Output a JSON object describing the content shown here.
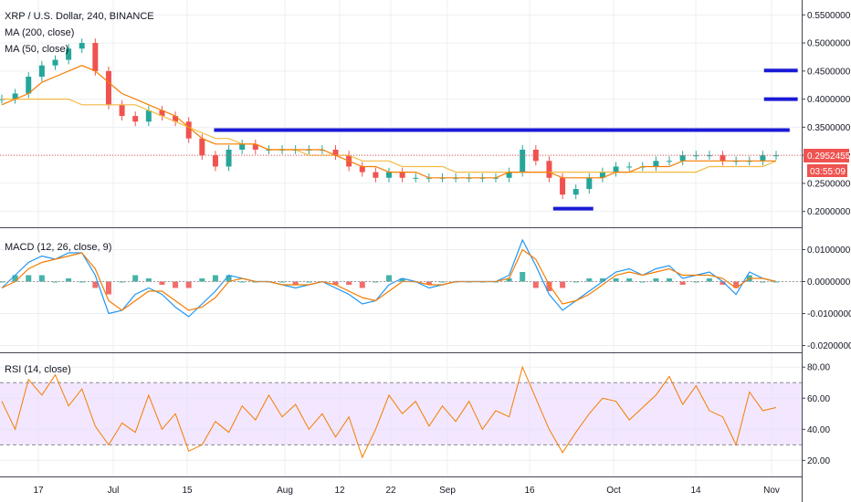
{
  "legend": {
    "symbol": "XRP / U.S. Dollar, 240, BINANCE",
    "ma200": "MA (200, close)",
    "ma50": "MA (50, close)",
    "macd": "MACD (12, 26, close, 9)",
    "rsi": "RSI (14, close)"
  },
  "price_axis": {
    "ticks": [
      "0.5500000",
      "0.5000000",
      "0.4500000",
      "0.4000000",
      "0.3500000",
      "0.3000000",
      "0.2500000",
      "0.2000000"
    ],
    "tick_values": [
      0.55,
      0.5,
      0.45,
      0.4,
      0.35,
      0.3,
      0.25,
      0.2
    ],
    "last_price": "0.2952455",
    "countdown": "03:55:09"
  },
  "macd_axis": {
    "ticks": [
      "0.0100000",
      "0.0000000",
      "-0.0100000",
      "-0.0200000"
    ],
    "tick_values": [
      0.01,
      0.0,
      -0.01,
      -0.02
    ]
  },
  "rsi_axis": {
    "ticks": [
      "80.00",
      "60.00",
      "40.00",
      "20.00"
    ],
    "tick_values": [
      80,
      60,
      40,
      20
    ],
    "band": [
      30,
      70
    ]
  },
  "time_axis": {
    "labels": [
      "17",
      "Jul",
      "15",
      "Aug",
      "12",
      "22",
      "Sep",
      "16",
      "Oct",
      "14",
      "Nov"
    ]
  },
  "colors": {
    "up": "#26a69a",
    "down": "#ef5350",
    "ma200": "#f5b942",
    "ma50": "#f57c00",
    "level": "#1a1ad6",
    "macd": "#2196f3",
    "signal": "#f57c00",
    "rsi": "#f57c00",
    "rsi_band": "#e9d7ff",
    "price_tag": "#ef5350"
  },
  "chart_data": {
    "type": "line",
    "price": {
      "ylim": [
        0.18,
        0.57
      ],
      "close": [
        0.4,
        0.41,
        0.44,
        0.46,
        0.47,
        0.49,
        0.5,
        0.45,
        0.39,
        0.37,
        0.36,
        0.38,
        0.37,
        0.36,
        0.33,
        0.3,
        0.28,
        0.31,
        0.32,
        0.31,
        0.31,
        0.31,
        0.31,
        0.31,
        0.31,
        0.3,
        0.28,
        0.27,
        0.26,
        0.27,
        0.26,
        0.26,
        0.26,
        0.26,
        0.26,
        0.26,
        0.26,
        0.26,
        0.27,
        0.31,
        0.29,
        0.26,
        0.23,
        0.24,
        0.26,
        0.27,
        0.28,
        0.28,
        0.28,
        0.29,
        0.29,
        0.3,
        0.3,
        0.3,
        0.29,
        0.29,
        0.29,
        0.3,
        0.3
      ],
      "ma50": [
        0.39,
        0.4,
        0.41,
        0.43,
        0.44,
        0.45,
        0.46,
        0.45,
        0.43,
        0.41,
        0.4,
        0.39,
        0.38,
        0.37,
        0.35,
        0.33,
        0.32,
        0.32,
        0.32,
        0.32,
        0.31,
        0.31,
        0.31,
        0.31,
        0.31,
        0.3,
        0.29,
        0.28,
        0.28,
        0.27,
        0.27,
        0.27,
        0.26,
        0.26,
        0.26,
        0.26,
        0.26,
        0.26,
        0.27,
        0.27,
        0.27,
        0.27,
        0.26,
        0.26,
        0.26,
        0.26,
        0.27,
        0.27,
        0.28,
        0.28,
        0.28,
        0.29,
        0.29,
        0.29,
        0.29,
        0.29,
        0.29,
        0.29,
        0.29
      ],
      "ma200": [
        0.4,
        0.4,
        0.4,
        0.4,
        0.4,
        0.4,
        0.39,
        0.39,
        0.39,
        0.39,
        0.39,
        0.38,
        0.37,
        0.36,
        0.35,
        0.34,
        0.33,
        0.33,
        0.32,
        0.32,
        0.31,
        0.31,
        0.31,
        0.3,
        0.3,
        0.3,
        0.3,
        0.29,
        0.29,
        0.29,
        0.28,
        0.28,
        0.28,
        0.28,
        0.27,
        0.27,
        0.27,
        0.27,
        0.27,
        0.27,
        0.27,
        0.27,
        0.27,
        0.27,
        0.27,
        0.27,
        0.27,
        0.27,
        0.27,
        0.27,
        0.27,
        0.27,
        0.27,
        0.28,
        0.28,
        0.28,
        0.28,
        0.28,
        0.29
      ],
      "levels": [
        {
          "value": 0.345,
          "from": 0.267,
          "to": 0.985
        },
        {
          "value": 0.4,
          "from": 0.953,
          "to": 0.995
        },
        {
          "value": 0.451,
          "from": 0.953,
          "to": 0.995
        },
        {
          "value": 0.205,
          "from": 0.69,
          "to": 0.74
        }
      ]
    },
    "macd": {
      "ylim": [
        -0.021,
        0.015
      ],
      "macd": [
        -0.002,
        0.002,
        0.006,
        0.008,
        0.007,
        0.009,
        0.009,
        0.002,
        -0.01,
        -0.009,
        -0.004,
        -0.002,
        -0.004,
        -0.008,
        -0.011,
        -0.007,
        -0.003,
        0.002,
        0.001,
        0.0,
        0.0,
        -0.001,
        -0.002,
        -0.001,
        0.0,
        -0.002,
        -0.004,
        -0.007,
        -0.006,
        -0.001,
        0.001,
        0.0,
        -0.002,
        -0.001,
        0.0,
        0.0,
        0.0,
        0.0,
        0.002,
        0.013,
        0.005,
        -0.004,
        -0.009,
        -0.006,
        -0.003,
        0.0,
        0.003,
        0.004,
        0.002,
        0.004,
        0.005,
        0.001,
        0.002,
        0.003,
        0.0,
        -0.004,
        0.003,
        0.001,
        0.0
      ],
      "signal": [
        -0.002,
        0.0,
        0.004,
        0.006,
        0.007,
        0.008,
        0.009,
        0.004,
        -0.006,
        -0.009,
        -0.006,
        -0.003,
        -0.003,
        -0.006,
        -0.009,
        -0.008,
        -0.005,
        0.0,
        0.001,
        0.0,
        0.0,
        -0.001,
        -0.001,
        -0.001,
        0.0,
        -0.001,
        -0.003,
        -0.005,
        -0.006,
        -0.003,
        0.0,
        0.0,
        -0.001,
        -0.001,
        0.0,
        0.0,
        0.0,
        0.0,
        0.001,
        0.01,
        0.007,
        -0.001,
        -0.007,
        -0.006,
        -0.004,
        -0.001,
        0.002,
        0.003,
        0.002,
        0.003,
        0.004,
        0.002,
        0.002,
        0.002,
        0.001,
        -0.002,
        0.001,
        0.001,
        0.0
      ]
    },
    "rsi": {
      "ylim": [
        12,
        86
      ],
      "values": [
        58,
        40,
        72,
        62,
        75,
        55,
        66,
        42,
        30,
        44,
        38,
        62,
        40,
        50,
        26,
        30,
        45,
        38,
        55,
        46,
        62,
        48,
        56,
        40,
        50,
        35,
        48,
        22,
        40,
        62,
        50,
        58,
        42,
        55,
        45,
        58,
        40,
        52,
        48,
        80,
        60,
        40,
        25,
        38,
        50,
        60,
        58,
        46,
        54,
        62,
        74,
        56,
        68,
        52,
        48,
        30,
        64,
        52,
        54
      ]
    }
  }
}
